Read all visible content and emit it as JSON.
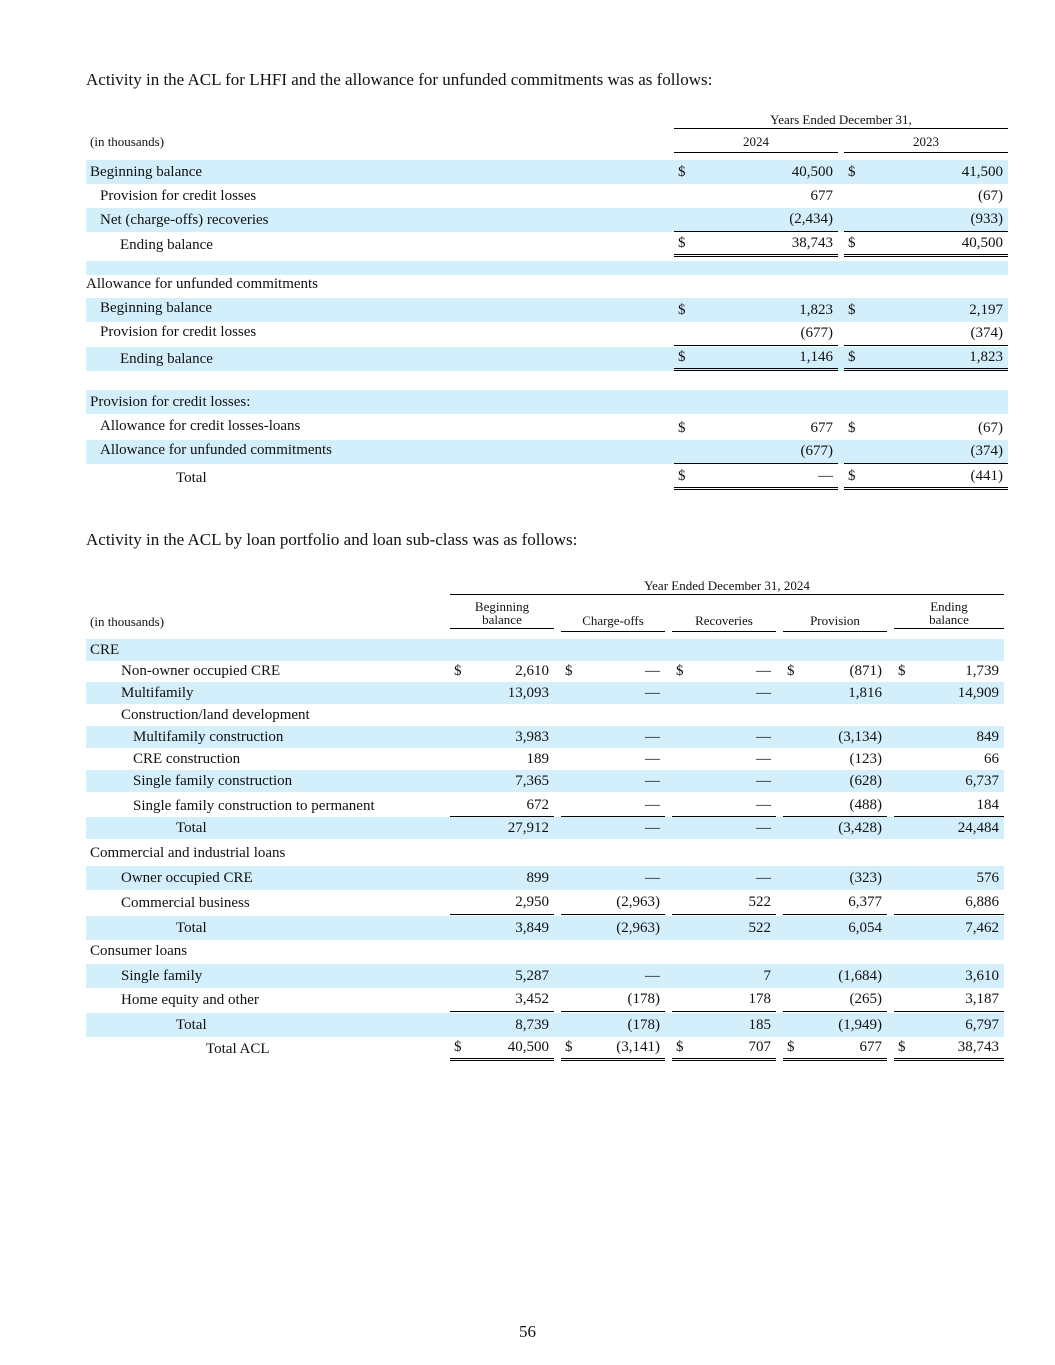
{
  "intro1": "Activity in the ACL for LHFI and the allowance for unfunded commitments was as follows:",
  "intro2": "Activity in the ACL by loan portfolio and loan sub-class was as follows:",
  "page_number": "56",
  "table1": {
    "unit_label": "(in thousands)",
    "period_header": "Years Ended December 31,",
    "col_2024": "2024",
    "col_2023": "2023",
    "rows": [
      {
        "label": "Beginning balance",
        "d1": "$",
        "v2024": "40,500",
        "d2": "$",
        "v2023": "41,500"
      },
      {
        "label": "Provision for credit losses",
        "d1": "",
        "v2024": "677",
        "d2": "",
        "v2023": "(67)"
      },
      {
        "label": "Net (charge-offs) recoveries",
        "d1": "",
        "v2024": "(2,434)",
        "d2": "",
        "v2023": "(933)"
      },
      {
        "label": "Ending balance",
        "d1": "$",
        "v2024": "38,743",
        "d2": "$",
        "v2023": "40,500"
      },
      {
        "label": "Allowance for unfunded commitments"
      },
      {
        "label": "Beginning balance",
        "d1": "$",
        "v2024": "1,823",
        "d2": "$",
        "v2023": "2,197"
      },
      {
        "label": "Provision for credit losses",
        "d1": "",
        "v2024": "(677)",
        "d2": "",
        "v2023": "(374)"
      },
      {
        "label": "Ending balance",
        "d1": "$",
        "v2024": "1,146",
        "d2": "$",
        "v2023": "1,823"
      },
      {
        "label": "Provision for credit losses:"
      },
      {
        "label": "Allowance for credit losses-loans",
        "d1": "$",
        "v2024": "677",
        "d2": "$",
        "v2023": "(67)"
      },
      {
        "label": "Allowance for unfunded commitments",
        "d1": "",
        "v2024": "(677)",
        "d2": "",
        "v2023": "(374)"
      },
      {
        "label": "Total",
        "d1": "$",
        "v2024": "—",
        "d2": "$",
        "v2023": "(441)"
      }
    ]
  },
  "table2": {
    "unit_label": "(in thousands)",
    "period_header": "Year Ended December 31, 2024",
    "columns": {
      "beginning_line1": "Beginning",
      "beginning_line2": "balance",
      "chargeoffs": "Charge-offs",
      "recoveries": "Recoveries",
      "provision": "Provision",
      "ending_line1": "Ending",
      "ending_line2": "balance"
    },
    "rows": [
      {
        "label": "CRE"
      },
      {
        "label": "Non-owner occupied CRE",
        "dollar": "$",
        "beg": "2,610",
        "co": "—",
        "rec": "—",
        "prov": "(871)",
        "end": "1,739"
      },
      {
        "label": "Multifamily",
        "beg": "13,093",
        "co": "—",
        "rec": "—",
        "prov": "1,816",
        "end": "14,909"
      },
      {
        "label": "Construction/land development"
      },
      {
        "label": "Multifamily construction",
        "beg": "3,983",
        "co": "—",
        "rec": "—",
        "prov": "(3,134)",
        "end": "849"
      },
      {
        "label": "CRE construction",
        "beg": "189",
        "co": "—",
        "rec": "—",
        "prov": "(123)",
        "end": "66"
      },
      {
        "label": "Single family construction",
        "beg": "7,365",
        "co": "—",
        "rec": "—",
        "prov": "(628)",
        "end": "6,737"
      },
      {
        "label": "Single family construction to permanent",
        "beg": "672",
        "co": "—",
        "rec": "—",
        "prov": "(488)",
        "end": "184"
      },
      {
        "label": "Total",
        "beg": "27,912",
        "co": "—",
        "rec": "—",
        "prov": "(3,428)",
        "end": "24,484"
      },
      {
        "label": "Commercial and industrial loans"
      },
      {
        "label": "Owner occupied CRE",
        "beg": "899",
        "co": "—",
        "rec": "—",
        "prov": "(323)",
        "end": "576"
      },
      {
        "label": "Commercial business",
        "beg": "2,950",
        "co": "(2,963)",
        "rec": "522",
        "prov": "6,377",
        "end": "6,886"
      },
      {
        "label": "Total",
        "beg": "3,849",
        "co": "(2,963)",
        "rec": "522",
        "prov": "6,054",
        "end": "7,462"
      },
      {
        "label": "Consumer loans"
      },
      {
        "label": "Single family",
        "beg": "5,287",
        "co": "—",
        "rec": "7",
        "prov": "(1,684)",
        "end": "3,610"
      },
      {
        "label": "Home equity and other",
        "beg": "3,452",
        "co": "(178)",
        "rec": "178",
        "prov": "(265)",
        "end": "3,187"
      },
      {
        "label": "Total",
        "beg": "8,739",
        "co": "(178)",
        "rec": "185",
        "prov": "(1,949)",
        "end": "6,797"
      },
      {
        "label": "Total ACL",
        "dollar": "$",
        "beg": "40,500",
        "co": "(3,141)",
        "rec": "707",
        "prov": "677",
        "end": "38,743"
      }
    ]
  }
}
